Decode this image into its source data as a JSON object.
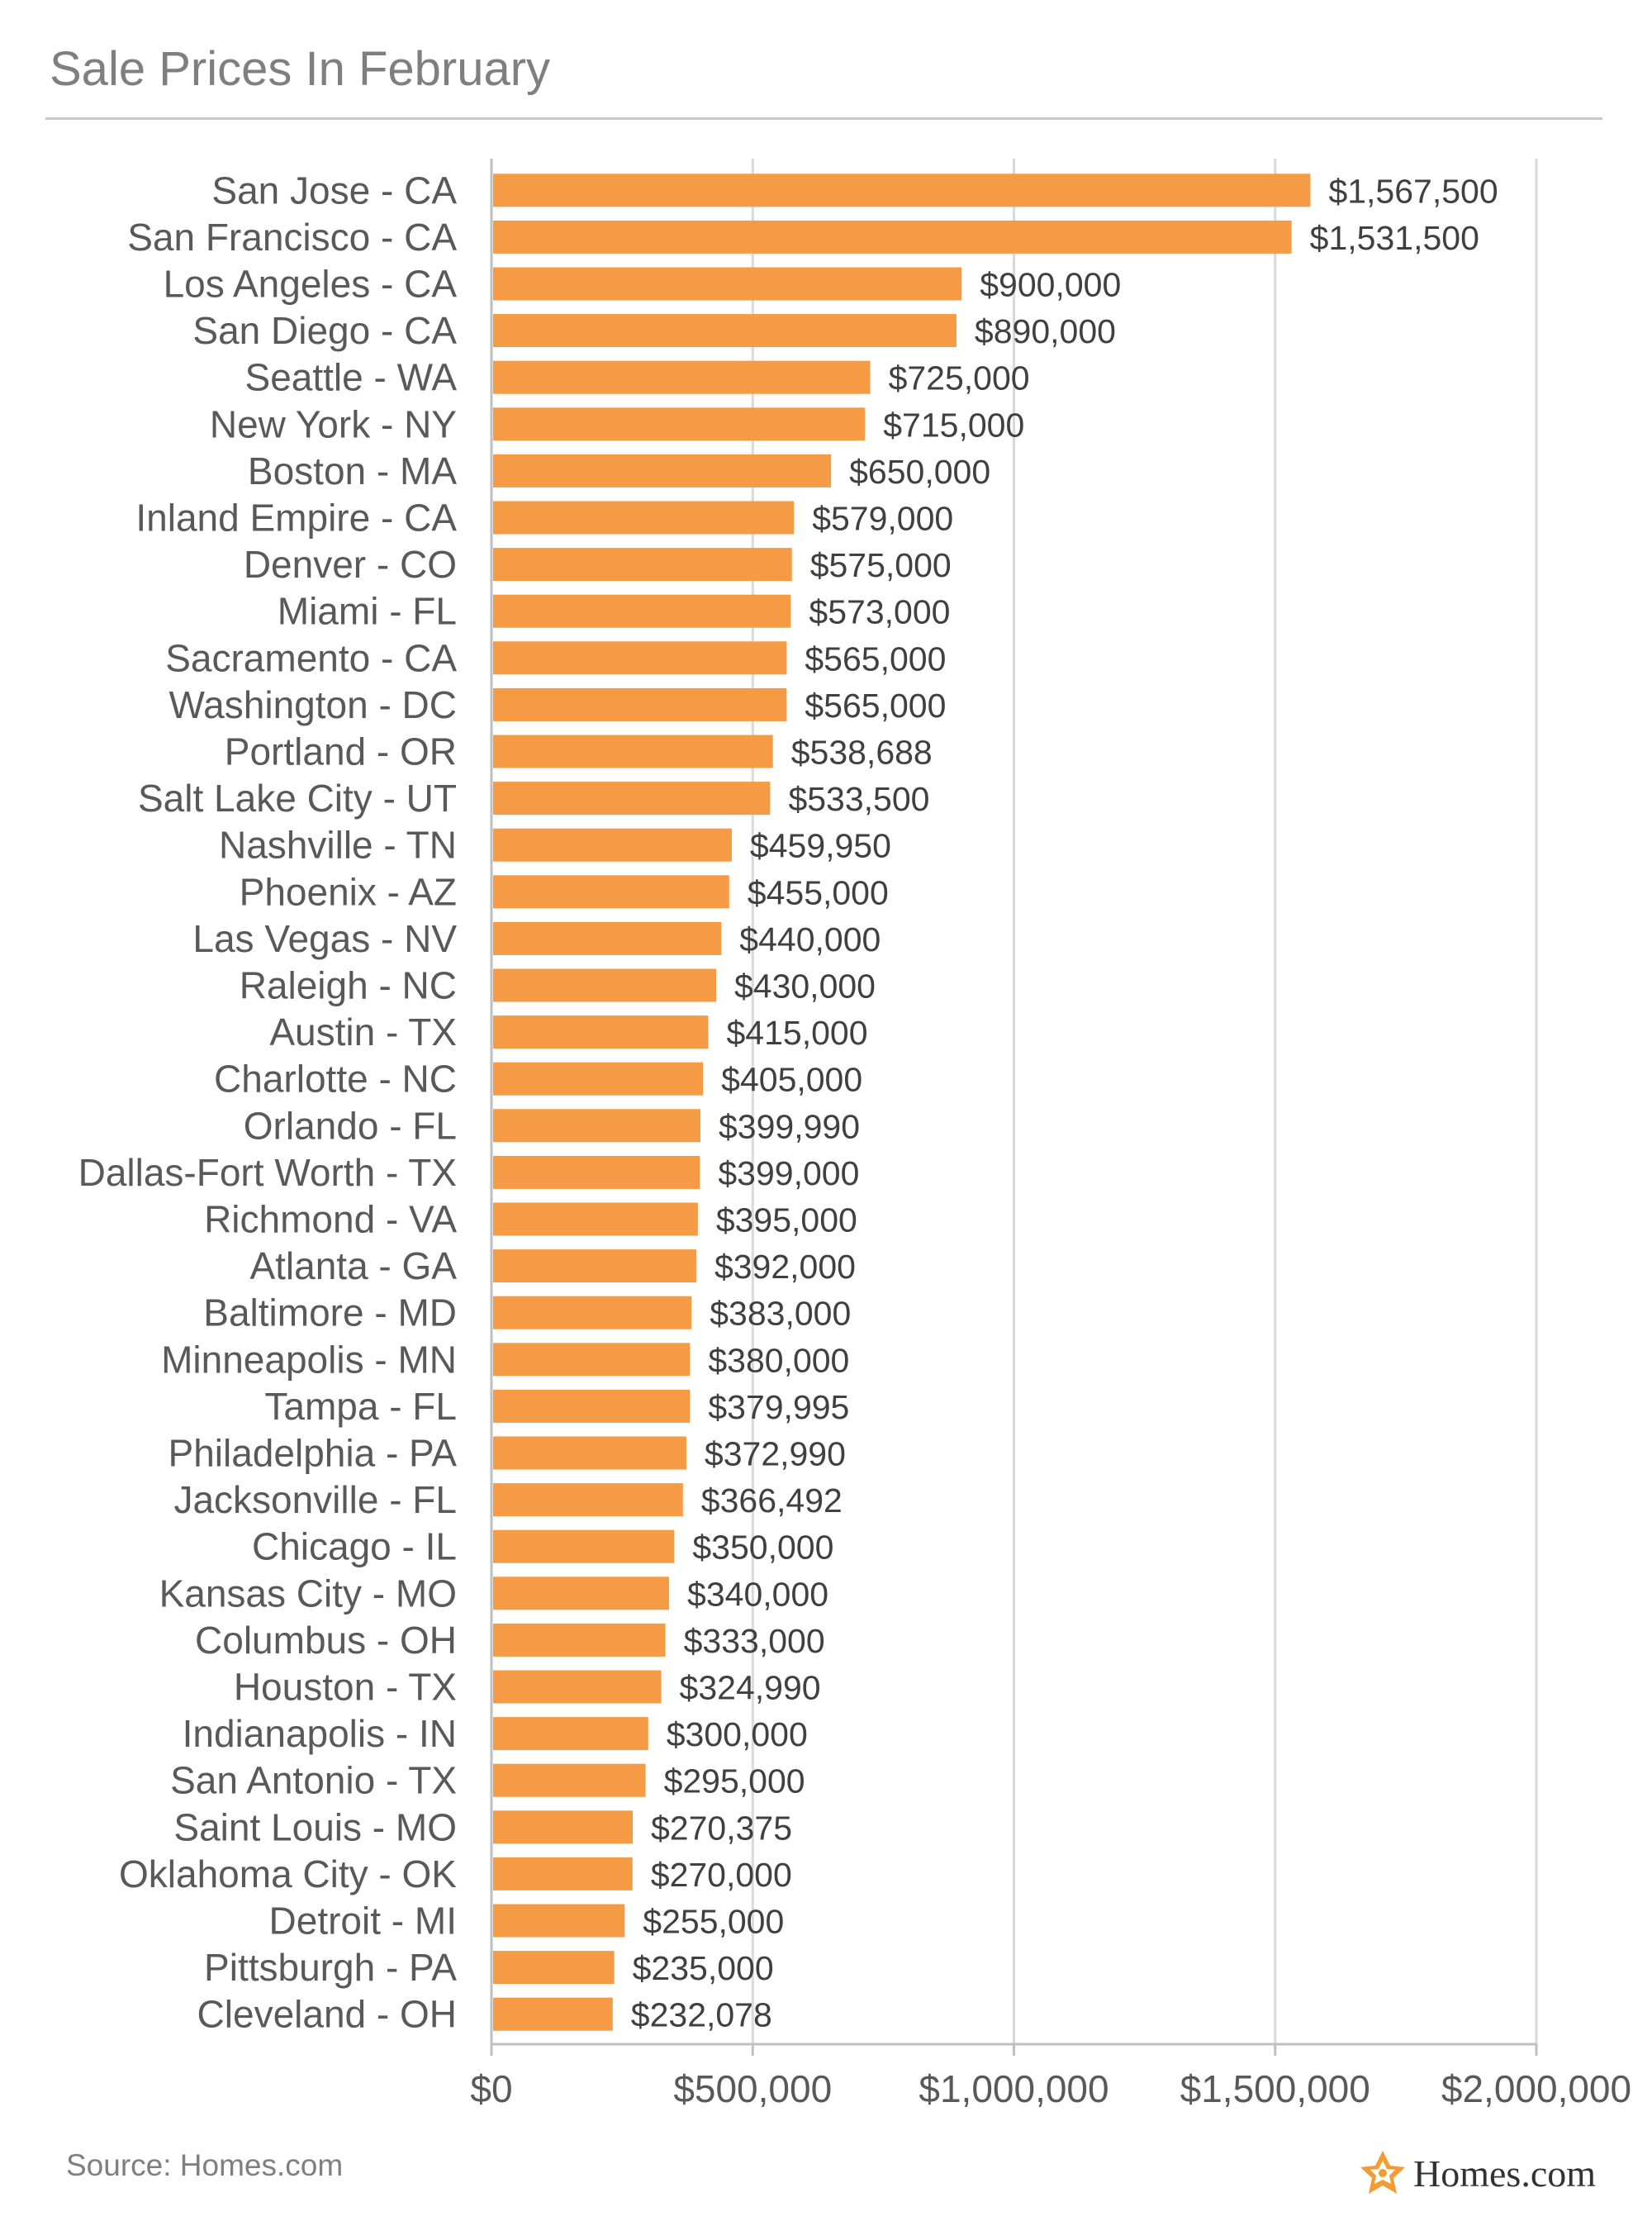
{
  "title": "Sale Prices In February",
  "source": "Source: Homes.com",
  "brand": "Homes.com",
  "colors": {
    "bar": "#f59a45",
    "grid": "#d9d9d9",
    "axis": "#bfbfbf",
    "text": "#595959",
    "brand_orange": "#f39c34"
  },
  "chart_data": {
    "type": "bar",
    "orientation": "horizontal",
    "title": "Sale Prices In February",
    "xlabel": "",
    "ylabel": "",
    "xlim": [
      0,
      2000000
    ],
    "ticks": [
      0,
      500000,
      1000000,
      1500000,
      2000000
    ],
    "tick_labels": [
      "$0",
      "$500,000",
      "$1,000,000",
      "$1,500,000",
      "$2,000,000"
    ],
    "grid": true,
    "categories": [
      "San Jose - CA",
      "San Francisco - CA",
      "Los Angeles - CA",
      "San Diego - CA",
      "Seattle - WA",
      "New York - NY",
      "Boston - MA",
      "Inland Empire - CA",
      "Denver - CO",
      "Miami - FL",
      "Sacramento - CA",
      "Washington - DC",
      "Portland - OR",
      "Salt Lake City - UT",
      "Nashville - TN",
      "Phoenix - AZ",
      "Las Vegas - NV",
      "Raleigh - NC",
      "Austin - TX",
      "Charlotte - NC",
      "Orlando - FL",
      "Dallas-Fort Worth - TX",
      "Richmond - VA",
      "Atlanta - GA",
      "Baltimore - MD",
      "Minneapolis - MN",
      "Tampa - FL",
      "Philadelphia - PA",
      "Jacksonville - FL",
      "Chicago - IL",
      "Kansas City - MO",
      "Columbus - OH",
      "Houston - TX",
      "Indianapolis - IN",
      "San Antonio - TX",
      "Saint Louis - MO",
      "Oklahoma City - OK",
      "Detroit - MI",
      "Pittsburgh - PA",
      "Cleveland - OH"
    ],
    "values": [
      1567500,
      1531500,
      900000,
      890000,
      725000,
      715000,
      650000,
      579000,
      575000,
      573000,
      565000,
      565000,
      538688,
      533500,
      459950,
      455000,
      440000,
      430000,
      415000,
      405000,
      399990,
      399000,
      395000,
      392000,
      383000,
      380000,
      379995,
      372990,
      366492,
      350000,
      340000,
      333000,
      324990,
      300000,
      295000,
      270375,
      270000,
      255000,
      235000,
      232078
    ],
    "value_labels": [
      "$1,567,500",
      "$1,531,500",
      "$900,000",
      "$890,000",
      "$725,000",
      "$715,000",
      "$650,000",
      "$579,000",
      "$575,000",
      "$573,000",
      "$565,000",
      "$565,000",
      "$538,688",
      "$533,500",
      "$459,950",
      "$455,000",
      "$440,000",
      "$430,000",
      "$415,000",
      "$405,000",
      "$399,990",
      "$399,000",
      "$395,000",
      "$392,000",
      "$383,000",
      "$380,000",
      "$379,995",
      "$372,990",
      "$366,492",
      "$350,000",
      "$340,000",
      "$333,000",
      "$324,990",
      "$300,000",
      "$295,000",
      "$270,375",
      "$270,000",
      "$255,000",
      "$235,000",
      "$232,078"
    ]
  }
}
